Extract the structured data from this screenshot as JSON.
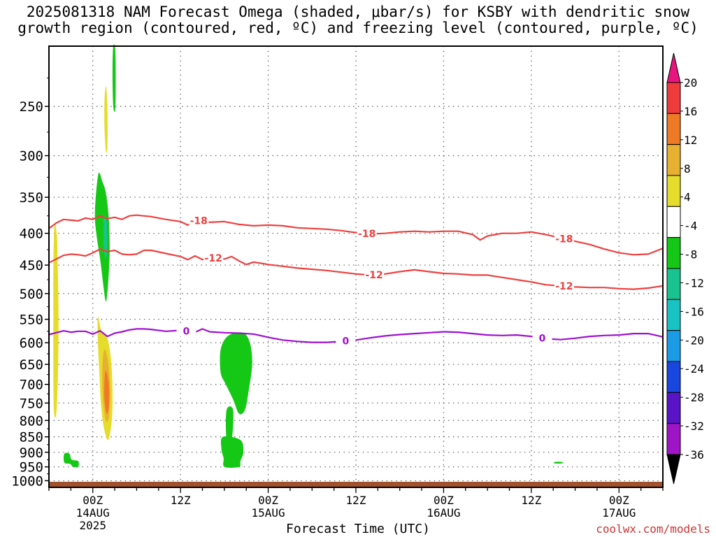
{
  "title": {
    "line1": "2025081318 NAM Forecast Omega (shaded, μbar/s) for KSBY with dendritic snow",
    "line2": "growth region (contoured, red, ºC) and freezing level (contoured, purple, ºC)"
  },
  "credit": "coolwx.com/models",
  "chart_data": {
    "type": "contour",
    "xlabel": "Forecast Time (UTC)",
    "ylabel": "",
    "x_ticks": [
      {
        "hour": 6,
        "lines": [
          "00Z",
          "14AUG",
          "2025"
        ]
      },
      {
        "hour": 18,
        "lines": [
          "12Z"
        ]
      },
      {
        "hour": 30,
        "lines": [
          "00Z",
          "15AUG"
        ]
      },
      {
        "hour": 42,
        "lines": [
          "12Z"
        ]
      },
      {
        "hour": 54,
        "lines": [
          "00Z",
          "16AUG"
        ]
      },
      {
        "hour": 66,
        "lines": [
          "12Z"
        ]
      },
      {
        "hour": 78,
        "lines": [
          "00Z",
          "17AUG"
        ]
      }
    ],
    "xlim": [
      0,
      84
    ],
    "y_ticks": [
      250,
      300,
      350,
      400,
      450,
      500,
      550,
      600,
      650,
      700,
      750,
      800,
      850,
      900,
      950,
      1000
    ],
    "ylim_hPa": [
      200,
      1025
    ],
    "y_scale": "log-pressure",
    "grid": true,
    "colorbar": {
      "labels": [
        "20",
        "16",
        "12",
        "8",
        "4",
        "-4",
        "-8",
        "-12",
        "-16",
        "-20",
        "-24",
        "-28",
        "-32",
        "-36"
      ],
      "bands": [
        {
          "from": 20,
          "to": 24,
          "color": "#e8157e"
        },
        {
          "from": 16,
          "to": 20,
          "color": "#ef3b3b"
        },
        {
          "from": 12,
          "to": 16,
          "color": "#ef7a26"
        },
        {
          "from": 8,
          "to": 12,
          "color": "#e8b030"
        },
        {
          "from": 4,
          "to": 8,
          "color": "#e6dc2b"
        },
        {
          "from": -4,
          "to": 4,
          "color": "#ffffff"
        },
        {
          "from": -8,
          "to": -4,
          "color": "#15c815"
        },
        {
          "from": -12,
          "to": -8,
          "color": "#19c390"
        },
        {
          "from": -16,
          "to": -12,
          "color": "#19c3c3"
        },
        {
          "from": -20,
          "to": -16,
          "color": "#199be6"
        },
        {
          "from": -24,
          "to": -20,
          "color": "#1a46e0"
        },
        {
          "from": -28,
          "to": -24,
          "color": "#5a14c8"
        },
        {
          "from": -32,
          "to": -28,
          "color": "#a014c8"
        },
        {
          "from": -36,
          "to": -32,
          "color": "#a0a0a0"
        }
      ]
    },
    "contours": [
      {
        "name": "-18",
        "color": "#ef4040",
        "labels_at_hour": [
          20.5,
          43.5,
          70.5
        ],
        "points": [
          [
            0,
            393
          ],
          [
            1,
            385
          ],
          [
            2,
            380
          ],
          [
            3,
            381
          ],
          [
            4,
            382
          ],
          [
            5,
            378
          ],
          [
            6,
            380
          ],
          [
            7,
            375
          ],
          [
            8,
            379
          ],
          [
            9,
            377
          ],
          [
            10,
            380
          ],
          [
            11,
            375
          ],
          [
            12,
            374
          ],
          [
            14,
            376
          ],
          [
            16,
            380
          ],
          [
            18,
            383
          ],
          [
            19,
            388
          ],
          [
            20,
            381
          ],
          [
            22,
            384
          ],
          [
            24,
            383
          ],
          [
            26,
            387
          ],
          [
            28,
            389
          ],
          [
            30,
            388
          ],
          [
            32,
            389
          ],
          [
            34,
            392
          ],
          [
            36,
            393
          ],
          [
            38,
            394
          ],
          [
            40,
            396
          ],
          [
            42,
            399
          ],
          [
            44,
            401
          ],
          [
            46,
            400
          ],
          [
            48,
            398
          ],
          [
            50,
            397
          ],
          [
            52,
            398
          ],
          [
            54,
            397
          ],
          [
            56,
            397
          ],
          [
            58,
            402
          ],
          [
            59,
            410
          ],
          [
            60,
            404
          ],
          [
            62,
            400
          ],
          [
            64,
            400
          ],
          [
            66,
            398
          ],
          [
            68,
            402
          ],
          [
            70,
            407
          ],
          [
            72,
            412
          ],
          [
            74,
            417
          ],
          [
            76,
            424
          ],
          [
            78,
            430
          ],
          [
            80,
            433
          ],
          [
            82,
            432
          ],
          [
            84,
            423
          ]
        ]
      },
      {
        "name": "-12",
        "color": "#ef4040",
        "labels_at_hour": [
          22.5,
          44.5,
          70.5
        ],
        "points": [
          [
            0,
            446
          ],
          [
            1,
            440
          ],
          [
            2,
            434
          ],
          [
            3,
            432
          ],
          [
            4,
            433
          ],
          [
            5,
            435
          ],
          [
            6,
            430
          ],
          [
            7,
            424
          ],
          [
            8,
            428
          ],
          [
            9,
            426
          ],
          [
            10,
            432
          ],
          [
            11,
            433
          ],
          [
            12,
            432
          ],
          [
            13,
            426
          ],
          [
            14,
            426
          ],
          [
            16,
            431
          ],
          [
            18,
            436
          ],
          [
            19,
            441
          ],
          [
            20,
            435
          ],
          [
            21,
            441
          ],
          [
            22,
            438
          ],
          [
            24,
            440
          ],
          [
            25,
            436
          ],
          [
            26,
            443
          ],
          [
            27,
            449
          ],
          [
            28,
            445
          ],
          [
            30,
            449
          ],
          [
            32,
            452
          ],
          [
            34,
            455
          ],
          [
            36,
            457
          ],
          [
            38,
            459
          ],
          [
            40,
            462
          ],
          [
            42,
            465
          ],
          [
            44,
            467
          ],
          [
            46,
            465
          ],
          [
            48,
            461
          ],
          [
            50,
            458
          ],
          [
            52,
            461
          ],
          [
            54,
            464
          ],
          [
            56,
            465
          ],
          [
            58,
            467
          ],
          [
            60,
            467
          ],
          [
            62,
            471
          ],
          [
            64,
            475
          ],
          [
            66,
            479
          ],
          [
            68,
            484
          ],
          [
            70,
            486
          ],
          [
            72,
            488
          ],
          [
            74,
            489
          ],
          [
            76,
            489
          ],
          [
            78,
            491
          ],
          [
            80,
            492
          ],
          [
            82,
            490
          ],
          [
            84,
            486
          ]
        ]
      },
      {
        "name": "0",
        "color": "#a010d0",
        "labels_at_hour": [
          18.8,
          40.6,
          67.5
        ],
        "points": [
          [
            0,
            582
          ],
          [
            1,
            578
          ],
          [
            2,
            574
          ],
          [
            3,
            577
          ],
          [
            4,
            575
          ],
          [
            5,
            575
          ],
          [
            6,
            581
          ],
          [
            7,
            574
          ],
          [
            8,
            586
          ],
          [
            9,
            579
          ],
          [
            10,
            576
          ],
          [
            11,
            572
          ],
          [
            12,
            570
          ],
          [
            13,
            570
          ],
          [
            14,
            571
          ],
          [
            16,
            575
          ],
          [
            18,
            573
          ],
          [
            19,
            575
          ],
          [
            20,
            577
          ],
          [
            21,
            570
          ],
          [
            22,
            576
          ],
          [
            24,
            578
          ],
          [
            26,
            579
          ],
          [
            28,
            581
          ],
          [
            30,
            588
          ],
          [
            32,
            594
          ],
          [
            34,
            597
          ],
          [
            36,
            599
          ],
          [
            38,
            599
          ],
          [
            40,
            597
          ],
          [
            42,
            594
          ],
          [
            44,
            589
          ],
          [
            46,
            585
          ],
          [
            48,
            582
          ],
          [
            50,
            580
          ],
          [
            52,
            578
          ],
          [
            54,
            576
          ],
          [
            56,
            577
          ],
          [
            58,
            580
          ],
          [
            60,
            583
          ],
          [
            62,
            584
          ],
          [
            64,
            583
          ],
          [
            66,
            586
          ],
          [
            68,
            591
          ],
          [
            70,
            593
          ],
          [
            72,
            590
          ],
          [
            74,
            586
          ],
          [
            76,
            584
          ],
          [
            78,
            583
          ],
          [
            80,
            580
          ],
          [
            82,
            580
          ],
          [
            84,
            587
          ]
        ]
      }
    ],
    "omega_blobs": [
      {
        "color": "#e6dc2b",
        "value_band": "4 to 8",
        "outline": [
          [
            0.8,
            385
          ],
          [
            1.1,
            405
          ],
          [
            1.2,
            450
          ],
          [
            1.3,
            520
          ],
          [
            1.3,
            600
          ],
          [
            1.2,
            700
          ],
          [
            1.0,
            780
          ],
          [
            0.7,
            780
          ],
          [
            0.6,
            680
          ],
          [
            0.6,
            560
          ],
          [
            0.6,
            460
          ],
          [
            0.7,
            400
          ]
        ]
      },
      {
        "color": "#e6dc2b",
        "value_band": "4 to 8",
        "outline": [
          [
            7.8,
            232
          ],
          [
            8.0,
            250
          ],
          [
            8.0,
            290
          ],
          [
            7.8,
            295
          ],
          [
            7.6,
            270
          ],
          [
            7.6,
            245
          ]
        ]
      },
      {
        "color": "#15c815",
        "value_band": "-4 to -8",
        "outline": [
          [
            8.8,
            200
          ],
          [
            9.1,
            205
          ],
          [
            9.1,
            250
          ],
          [
            8.8,
            250
          ],
          [
            8.7,
            220
          ]
        ]
      },
      {
        "color": "#15c815",
        "value_band": "-4 to -8",
        "outline": [
          [
            6.4,
            350
          ],
          [
            6.8,
            320
          ],
          [
            7.3,
            330
          ],
          [
            7.8,
            345
          ],
          [
            8.2,
            380
          ],
          [
            8.3,
            430
          ],
          [
            8.1,
            480
          ],
          [
            7.8,
            515
          ],
          [
            7.4,
            480
          ],
          [
            7.0,
            440
          ],
          [
            6.6,
            410
          ],
          [
            6.3,
            380
          ]
        ]
      },
      {
        "color": "#19c390",
        "value_band": "-8 to -12",
        "outline": [
          [
            7.5,
            380
          ],
          [
            7.9,
            380
          ],
          [
            8.0,
            420
          ],
          [
            7.8,
            440
          ],
          [
            7.5,
            420
          ]
        ]
      },
      {
        "color": "#e6dc2b",
        "value_band": "4 to 8",
        "outline": [
          [
            6.7,
            545
          ],
          [
            7.2,
            575
          ],
          [
            8.0,
            590
          ],
          [
            8.5,
            640
          ],
          [
            8.7,
            720
          ],
          [
            8.6,
            800
          ],
          [
            8.1,
            860
          ],
          [
            7.5,
            820
          ],
          [
            7.1,
            750
          ],
          [
            6.9,
            670
          ],
          [
            6.7,
            600
          ]
        ]
      },
      {
        "color": "#e8b030",
        "value_band": "8 to 12",
        "outline": [
          [
            7.6,
            615
          ],
          [
            8.1,
            645
          ],
          [
            8.4,
            720
          ],
          [
            8.2,
            790
          ],
          [
            7.8,
            800
          ],
          [
            7.4,
            740
          ],
          [
            7.3,
            660
          ]
        ]
      },
      {
        "color": "#ef7a26",
        "value_band": "12 to 16",
        "outline": [
          [
            7.8,
            665
          ],
          [
            8.2,
            700
          ],
          [
            8.2,
            760
          ],
          [
            7.9,
            780
          ],
          [
            7.6,
            740
          ],
          [
            7.6,
            690
          ]
        ]
      },
      {
        "color": "#15c815",
        "value_band": "-4 to -8",
        "outline": [
          [
            23.5,
            615
          ],
          [
            24.5,
            585
          ],
          [
            26.5,
            578
          ],
          [
            27.5,
            600
          ],
          [
            27.8,
            650
          ],
          [
            27.3,
            720
          ],
          [
            26.8,
            770
          ],
          [
            26.0,
            780
          ],
          [
            25.2,
            740
          ],
          [
            24.2,
            700
          ],
          [
            23.5,
            670
          ]
        ]
      },
      {
        "color": "#15c815",
        "value_band": "-4 to -8",
        "outline": [
          [
            24.3,
            770
          ],
          [
            25.2,
            770
          ],
          [
            25.0,
            860
          ],
          [
            24.3,
            860
          ]
        ]
      },
      {
        "color": "#15c815",
        "value_band": "-4 to -8",
        "outline": [
          [
            23.8,
            850
          ],
          [
            26.2,
            860
          ],
          [
            26.6,
            900
          ],
          [
            26.2,
            930
          ],
          [
            26.0,
            950
          ],
          [
            24.0,
            950
          ],
          [
            23.9,
            920
          ],
          [
            23.6,
            890
          ]
        ]
      },
      {
        "color": "#15c815",
        "value_band": "-4 to -8",
        "outline": [
          [
            2.1,
            905
          ],
          [
            2.8,
            905
          ],
          [
            3.1,
            925
          ],
          [
            4.0,
            930
          ],
          [
            4.0,
            950
          ],
          [
            3.3,
            950
          ],
          [
            2.9,
            940
          ],
          [
            2.1,
            935
          ]
        ]
      },
      {
        "color": "#15c815",
        "value_band": "-4 to -8",
        "outline": [
          [
            69.2,
            933
          ],
          [
            70.2,
            933
          ],
          [
            70.2,
            938
          ],
          [
            69.2,
            938
          ]
        ]
      }
    ],
    "terrain_color": "#a0522d",
    "surface_pressure_hPa": 1004
  }
}
